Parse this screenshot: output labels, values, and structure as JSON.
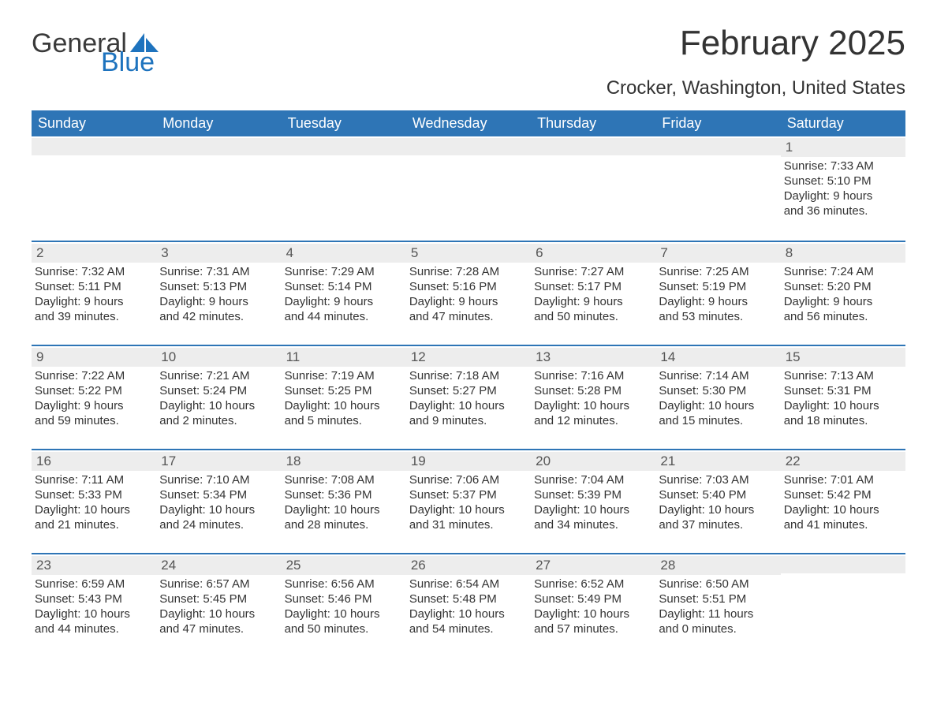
{
  "logo": {
    "word1": "General",
    "word2": "Blue"
  },
  "title": "February 2025",
  "location": "Crocker, Washington, United States",
  "colors": {
    "header_bg": "#2e75b6",
    "header_text": "#ffffff",
    "daynum_bg": "#ededed",
    "week_divider": "#2e75b6",
    "logo_blue": "#1e73be",
    "text": "#333333",
    "background": "#ffffff"
  },
  "fonts": {
    "title_size": 44,
    "location_size": 24,
    "dow_size": 18,
    "cell_size": 15
  },
  "days_of_week": [
    "Sunday",
    "Monday",
    "Tuesday",
    "Wednesday",
    "Thursday",
    "Friday",
    "Saturday"
  ],
  "weeks": [
    [
      null,
      null,
      null,
      null,
      null,
      null,
      {
        "n": "1",
        "sunrise": "7:33 AM",
        "sunset": "5:10 PM",
        "dl1": "Daylight: 9 hours",
        "dl2": "and 36 minutes."
      }
    ],
    [
      {
        "n": "2",
        "sunrise": "7:32 AM",
        "sunset": "5:11 PM",
        "dl1": "Daylight: 9 hours",
        "dl2": "and 39 minutes."
      },
      {
        "n": "3",
        "sunrise": "7:31 AM",
        "sunset": "5:13 PM",
        "dl1": "Daylight: 9 hours",
        "dl2": "and 42 minutes."
      },
      {
        "n": "4",
        "sunrise": "7:29 AM",
        "sunset": "5:14 PM",
        "dl1": "Daylight: 9 hours",
        "dl2": "and 44 minutes."
      },
      {
        "n": "5",
        "sunrise": "7:28 AM",
        "sunset": "5:16 PM",
        "dl1": "Daylight: 9 hours",
        "dl2": "and 47 minutes."
      },
      {
        "n": "6",
        "sunrise": "7:27 AM",
        "sunset": "5:17 PM",
        "dl1": "Daylight: 9 hours",
        "dl2": "and 50 minutes."
      },
      {
        "n": "7",
        "sunrise": "7:25 AM",
        "sunset": "5:19 PM",
        "dl1": "Daylight: 9 hours",
        "dl2": "and 53 minutes."
      },
      {
        "n": "8",
        "sunrise": "7:24 AM",
        "sunset": "5:20 PM",
        "dl1": "Daylight: 9 hours",
        "dl2": "and 56 minutes."
      }
    ],
    [
      {
        "n": "9",
        "sunrise": "7:22 AM",
        "sunset": "5:22 PM",
        "dl1": "Daylight: 9 hours",
        "dl2": "and 59 minutes."
      },
      {
        "n": "10",
        "sunrise": "7:21 AM",
        "sunset": "5:24 PM",
        "dl1": "Daylight: 10 hours",
        "dl2": "and 2 minutes."
      },
      {
        "n": "11",
        "sunrise": "7:19 AM",
        "sunset": "5:25 PM",
        "dl1": "Daylight: 10 hours",
        "dl2": "and 5 minutes."
      },
      {
        "n": "12",
        "sunrise": "7:18 AM",
        "sunset": "5:27 PM",
        "dl1": "Daylight: 10 hours",
        "dl2": "and 9 minutes."
      },
      {
        "n": "13",
        "sunrise": "7:16 AM",
        "sunset": "5:28 PM",
        "dl1": "Daylight: 10 hours",
        "dl2": "and 12 minutes."
      },
      {
        "n": "14",
        "sunrise": "7:14 AM",
        "sunset": "5:30 PM",
        "dl1": "Daylight: 10 hours",
        "dl2": "and 15 minutes."
      },
      {
        "n": "15",
        "sunrise": "7:13 AM",
        "sunset": "5:31 PM",
        "dl1": "Daylight: 10 hours",
        "dl2": "and 18 minutes."
      }
    ],
    [
      {
        "n": "16",
        "sunrise": "7:11 AM",
        "sunset": "5:33 PM",
        "dl1": "Daylight: 10 hours",
        "dl2": "and 21 minutes."
      },
      {
        "n": "17",
        "sunrise": "7:10 AM",
        "sunset": "5:34 PM",
        "dl1": "Daylight: 10 hours",
        "dl2": "and 24 minutes."
      },
      {
        "n": "18",
        "sunrise": "7:08 AM",
        "sunset": "5:36 PM",
        "dl1": "Daylight: 10 hours",
        "dl2": "and 28 minutes."
      },
      {
        "n": "19",
        "sunrise": "7:06 AM",
        "sunset": "5:37 PM",
        "dl1": "Daylight: 10 hours",
        "dl2": "and 31 minutes."
      },
      {
        "n": "20",
        "sunrise": "7:04 AM",
        "sunset": "5:39 PM",
        "dl1": "Daylight: 10 hours",
        "dl2": "and 34 minutes."
      },
      {
        "n": "21",
        "sunrise": "7:03 AM",
        "sunset": "5:40 PM",
        "dl1": "Daylight: 10 hours",
        "dl2": "and 37 minutes."
      },
      {
        "n": "22",
        "sunrise": "7:01 AM",
        "sunset": "5:42 PM",
        "dl1": "Daylight: 10 hours",
        "dl2": "and 41 minutes."
      }
    ],
    [
      {
        "n": "23",
        "sunrise": "6:59 AM",
        "sunset": "5:43 PM",
        "dl1": "Daylight: 10 hours",
        "dl2": "and 44 minutes."
      },
      {
        "n": "24",
        "sunrise": "6:57 AM",
        "sunset": "5:45 PM",
        "dl1": "Daylight: 10 hours",
        "dl2": "and 47 minutes."
      },
      {
        "n": "25",
        "sunrise": "6:56 AM",
        "sunset": "5:46 PM",
        "dl1": "Daylight: 10 hours",
        "dl2": "and 50 minutes."
      },
      {
        "n": "26",
        "sunrise": "6:54 AM",
        "sunset": "5:48 PM",
        "dl1": "Daylight: 10 hours",
        "dl2": "and 54 minutes."
      },
      {
        "n": "27",
        "sunrise": "6:52 AM",
        "sunset": "5:49 PM",
        "dl1": "Daylight: 10 hours",
        "dl2": "and 57 minutes."
      },
      {
        "n": "28",
        "sunrise": "6:50 AM",
        "sunset": "5:51 PM",
        "dl1": "Daylight: 11 hours",
        "dl2": "and 0 minutes."
      },
      null
    ]
  ],
  "labels": {
    "sunrise_prefix": "Sunrise: ",
    "sunset_prefix": "Sunset: "
  }
}
